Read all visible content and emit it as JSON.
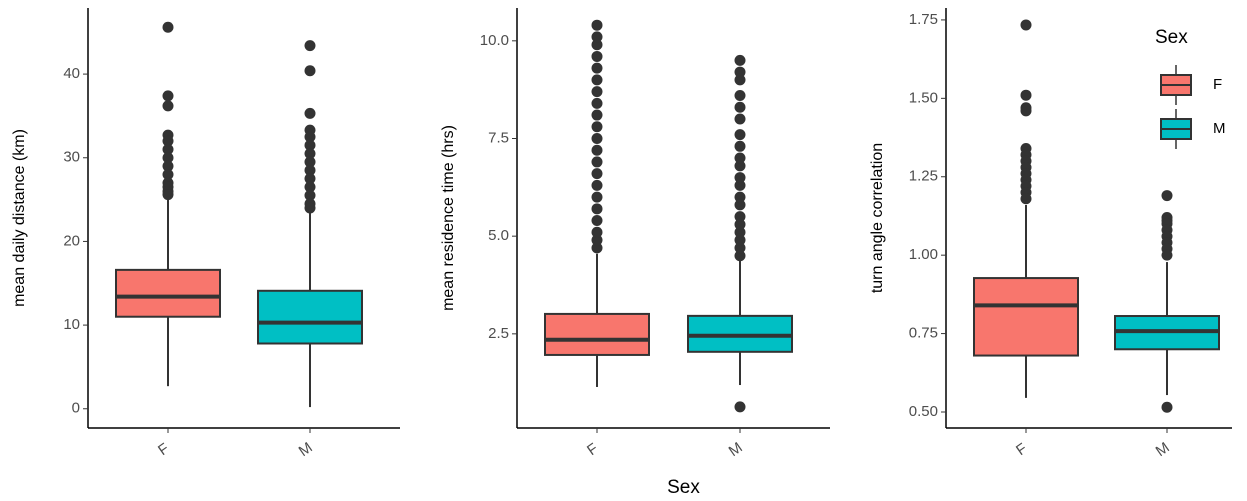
{
  "chart_data": [
    {
      "type": "box",
      "ylabel": "mean daily distance (km)",
      "categories": [
        "F",
        "M"
      ],
      "colors": [
        "#f8766d",
        "#00bfc4"
      ],
      "ylim": [
        -2.3,
        47.9
      ],
      "yticks": [
        0,
        10,
        20,
        30,
        40
      ],
      "boxes": [
        {
          "min": 2.7,
          "q1": 11.0,
          "median": 13.4,
          "q3": 16.6,
          "max": 25.3,
          "outliers": [
            45.6,
            37.4,
            36.2,
            32.7,
            32.0,
            31.0,
            30.0,
            29.0,
            28.0,
            27.0,
            26.5,
            26.0,
            25.6
          ]
        },
        {
          "min": 0.2,
          "q1": 7.8,
          "median": 10.3,
          "q3": 14.1,
          "max": 23.4,
          "outliers": [
            43.4,
            40.4,
            35.3,
            33.3,
            32.5,
            31.5,
            30.5,
            29.5,
            28.5,
            27.5,
            26.5,
            25.5,
            24.5,
            24.0
          ]
        }
      ]
    },
    {
      "type": "box",
      "ylabel": "mean residence time (hrs)",
      "xlabel": "Sex",
      "categories": [
        "F",
        "M"
      ],
      "colors": [
        "#f8766d",
        "#00bfc4"
      ],
      "ylim": [
        0.09,
        10.84
      ],
      "yticks": [
        2.5,
        {
          "value": 5,
          "label": "5.0"
        },
        7.5,
        {
          "value": 10,
          "label": "10.0"
        }
      ],
      "boxes": [
        {
          "min": 1.14,
          "q1": 1.96,
          "median": 2.35,
          "q3": 3.01,
          "max": 4.55,
          "outliers": [
            4.7,
            4.9,
            5.1,
            5.4,
            5.7,
            6.0,
            6.3,
            6.6,
            6.9,
            7.2,
            7.5,
            7.8,
            8.1,
            8.4,
            8.7,
            9.0,
            9.3,
            9.6,
            9.9,
            10.1,
            10.4
          ]
        },
        {
          "min": 1.19,
          "q1": 2.04,
          "median": 2.45,
          "q3": 2.96,
          "max": 4.37,
          "outliers": [
            0.63,
            4.5,
            4.7,
            4.9,
            5.1,
            5.3,
            5.5,
            5.8,
            6.0,
            6.3,
            6.5,
            6.8,
            7.0,
            7.3,
            7.6,
            8.0,
            8.3,
            8.6,
            9.0,
            9.2,
            9.5
          ]
        }
      ]
    },
    {
      "type": "box",
      "ylabel": "turn angle correlation",
      "categories": [
        "F",
        "M"
      ],
      "colors": [
        "#f8766d",
        "#00bfc4"
      ],
      "ylim": [
        0.449,
        1.788
      ],
      "yticks": [
        {
          "value": 0.5,
          "label": "0.50"
        },
        0.75,
        {
          "value": 1,
          "label": "1.00"
        },
        1.25,
        {
          "value": 1.5,
          "label": "1.50"
        },
        1.75
      ],
      "legend_title": "Sex",
      "boxes": [
        {
          "min": 0.545,
          "q1": 0.68,
          "median": 0.84,
          "q3": 0.927,
          "max": 1.16,
          "outliers": [
            1.734,
            1.51,
            1.47,
            1.46,
            1.34,
            1.32,
            1.3,
            1.28,
            1.26,
            1.24,
            1.22,
            1.2,
            1.18
          ]
        },
        {
          "min": 0.554,
          "q1": 0.7,
          "median": 0.758,
          "q3": 0.806,
          "max": 0.978,
          "outliers": [
            0.515,
            1.19,
            1.12,
            1.11,
            1.1,
            1.08,
            1.06,
            1.04,
            1.02,
            1.0
          ]
        }
      ]
    }
  ]
}
